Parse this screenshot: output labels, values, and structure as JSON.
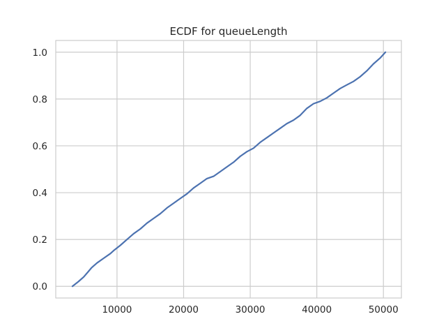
{
  "chart_data": {
    "type": "line",
    "title": "ECDF for queueLength",
    "xlabel": "",
    "ylabel": "",
    "xlim": [
      800,
      52700
    ],
    "ylim": [
      -0.05,
      1.05
    ],
    "xticks": [
      10000,
      20000,
      30000,
      40000,
      50000
    ],
    "xtick_labels": [
      "10000",
      "20000",
      "30000",
      "40000",
      "50000"
    ],
    "yticks": [
      0.0,
      0.2,
      0.4,
      0.6,
      0.8,
      1.0
    ],
    "ytick_labels": [
      "0.0",
      "0.2",
      "0.4",
      "0.6",
      "0.8",
      "1.0"
    ],
    "grid": true,
    "line_color": "#4c72b0",
    "series": [
      {
        "x": [
          3300,
          4200,
          5000,
          5600,
          6200,
          7000,
          8000,
          9000,
          9600,
          10500,
          11500,
          12500,
          13500,
          14500,
          15500,
          16500,
          17500,
          18500,
          19500,
          20500,
          21500,
          22500,
          23500,
          24500,
          25500,
          26500,
          27500,
          28500,
          29500,
          30500,
          31500,
          32500,
          33500,
          34500,
          35500,
          36500,
          37500,
          38500,
          39500,
          40500,
          41500,
          42500,
          43500,
          44500,
          45500,
          46500,
          47500,
          48500,
          49500,
          50300
        ],
        "y": [
          0.0,
          0.02,
          0.04,
          0.06,
          0.08,
          0.1,
          0.12,
          0.14,
          0.155,
          0.175,
          0.2,
          0.225,
          0.245,
          0.27,
          0.29,
          0.31,
          0.335,
          0.355,
          0.375,
          0.395,
          0.42,
          0.44,
          0.46,
          0.47,
          0.49,
          0.51,
          0.53,
          0.555,
          0.575,
          0.59,
          0.615,
          0.635,
          0.655,
          0.675,
          0.695,
          0.71,
          0.73,
          0.76,
          0.78,
          0.79,
          0.805,
          0.825,
          0.845,
          0.86,
          0.875,
          0.895,
          0.92,
          0.95,
          0.975,
          1.0
        ]
      }
    ]
  }
}
